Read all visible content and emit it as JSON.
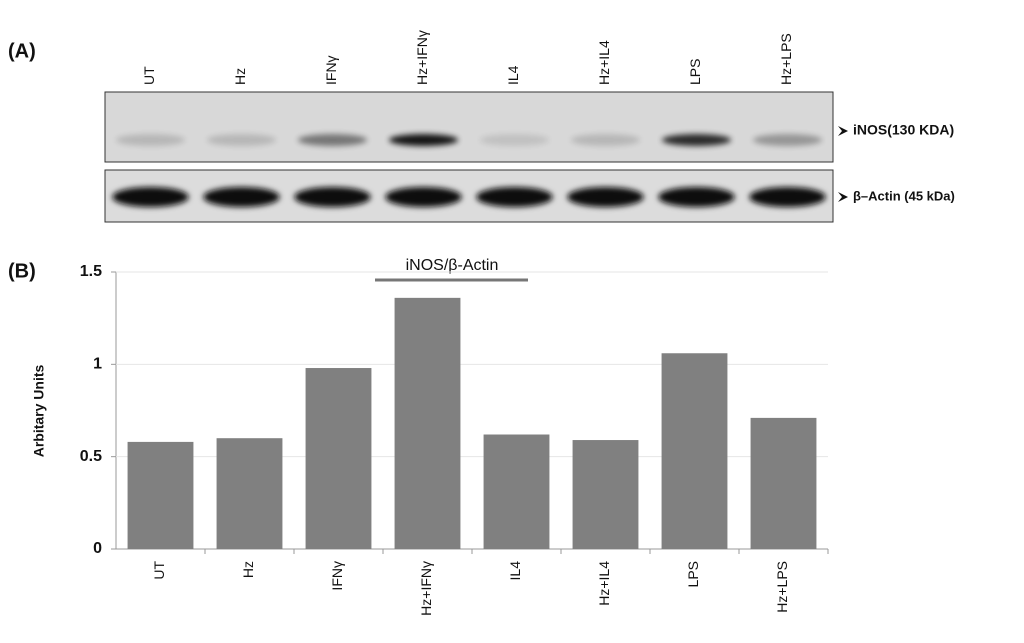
{
  "blot": {
    "panel_label": "(A)",
    "lanes": [
      "UT",
      "Hz",
      "IFNγ",
      "Hz+IFNγ",
      "IL4",
      "Hz+IL4",
      "LPS",
      "Hz+LPS"
    ],
    "bands": [
      "iNOS(130 KDA)",
      "β–Actin (45 kDa)"
    ]
  },
  "chart_data": {
    "type": "bar",
    "panel_label": "(B)",
    "title": "iNOS/β-Actin",
    "y_label": "Arbitary Units",
    "categories": [
      "UT",
      "Hz",
      "IFNγ",
      "Hz+IFNγ",
      "IL4",
      "Hz+IL4",
      "LPS",
      "Hz+LPS"
    ],
    "values": [
      0.58,
      0.6,
      0.98,
      1.36,
      0.62,
      0.59,
      1.06,
      0.71
    ],
    "color": "#808080",
    "ylim": [
      0,
      1.5
    ],
    "yticks": [
      0,
      0.5,
      1,
      1.5
    ],
    "grid": true
  }
}
